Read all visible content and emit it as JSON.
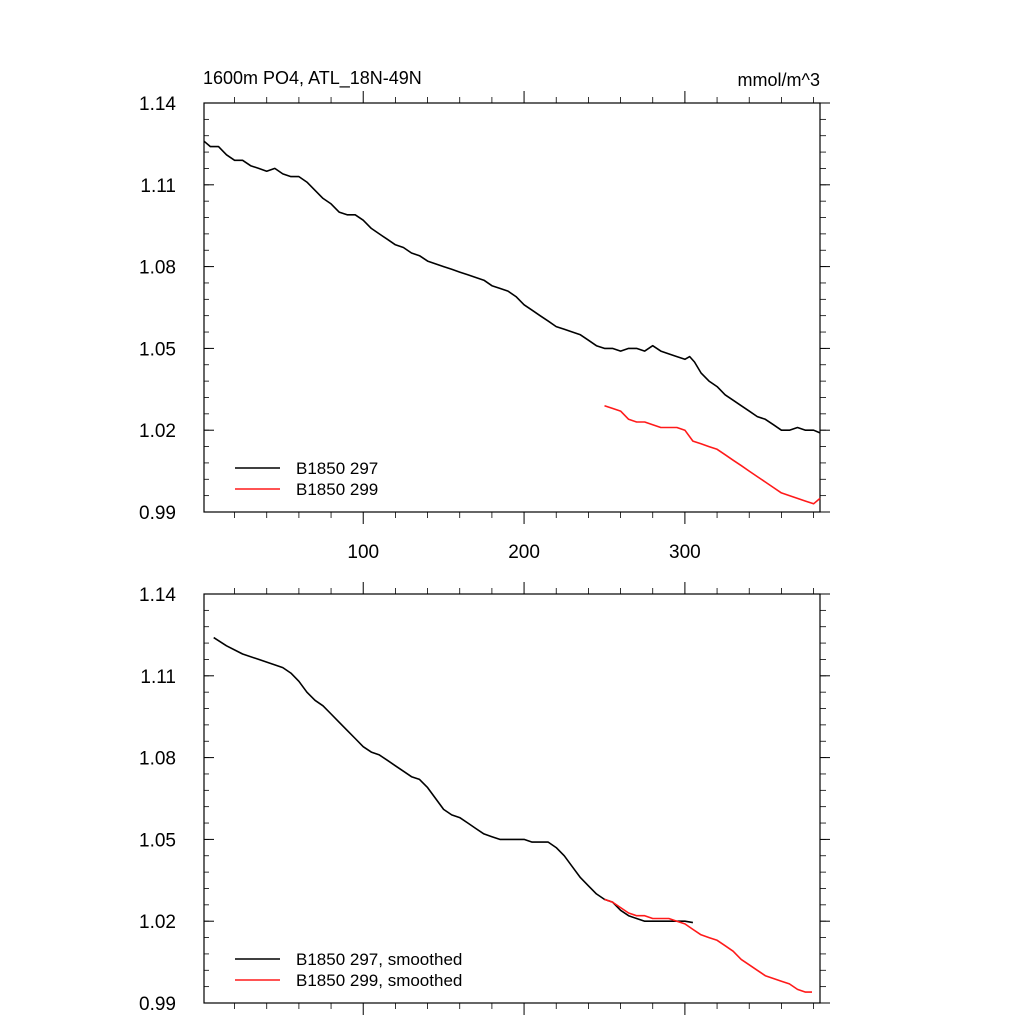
{
  "title_left": "1600m PO4, ATL_18N-49N",
  "title_right": "mmol/m^3",
  "colors": {
    "series1": "#000000",
    "series2": "#ff1a1a",
    "axis": "#000000"
  },
  "chart_data": [
    {
      "type": "line",
      "xlim": [
        1,
        384
      ],
      "ylim": [
        0.99,
        1.14
      ],
      "yticks": [
        0.99,
        1.02,
        1.05,
        1.08,
        1.11,
        1.14
      ],
      "ytick_labels": [
        "0.99",
        "1.02",
        "1.05",
        "1.08",
        "1.11",
        "1.14"
      ],
      "xticks": [
        100,
        200,
        300
      ],
      "xtick_labels": [
        "100",
        "200",
        "300"
      ],
      "legend_position": "bottom-left",
      "series": [
        {
          "name": "B1850 297",
          "color": "#000000",
          "points": [
            [
              1,
              1.126
            ],
            [
              5,
              1.124
            ],
            [
              10,
              1.124
            ],
            [
              15,
              1.121
            ],
            [
              20,
              1.119
            ],
            [
              25,
              1.119
            ],
            [
              30,
              1.117
            ],
            [
              35,
              1.116
            ],
            [
              40,
              1.115
            ],
            [
              45,
              1.116
            ],
            [
              50,
              1.114
            ],
            [
              55,
              1.113
            ],
            [
              60,
              1.113
            ],
            [
              65,
              1.111
            ],
            [
              70,
              1.108
            ],
            [
              75,
              1.105
            ],
            [
              80,
              1.103
            ],
            [
              85,
              1.1
            ],
            [
              90,
              1.099
            ],
            [
              95,
              1.099
            ],
            [
              100,
              1.097
            ],
            [
              105,
              1.094
            ],
            [
              110,
              1.092
            ],
            [
              115,
              1.09
            ],
            [
              120,
              1.088
            ],
            [
              125,
              1.087
            ],
            [
              130,
              1.085
            ],
            [
              135,
              1.084
            ],
            [
              140,
              1.082
            ],
            [
              145,
              1.081
            ],
            [
              150,
              1.08
            ],
            [
              155,
              1.079
            ],
            [
              160,
              1.078
            ],
            [
              165,
              1.077
            ],
            [
              170,
              1.076
            ],
            [
              175,
              1.075
            ],
            [
              180,
              1.073
            ],
            [
              185,
              1.072
            ],
            [
              190,
              1.071
            ],
            [
              195,
              1.069
            ],
            [
              200,
              1.066
            ],
            [
              205,
              1.064
            ],
            [
              210,
              1.062
            ],
            [
              215,
              1.06
            ],
            [
              220,
              1.058
            ],
            [
              225,
              1.057
            ],
            [
              230,
              1.056
            ],
            [
              235,
              1.055
            ],
            [
              240,
              1.053
            ],
            [
              245,
              1.051
            ],
            [
              250,
              1.05
            ],
            [
              255,
              1.05
            ],
            [
              260,
              1.049
            ],
            [
              265,
              1.05
            ],
            [
              270,
              1.05
            ],
            [
              275,
              1.049
            ],
            [
              280,
              1.051
            ],
            [
              285,
              1.049
            ],
            [
              290,
              1.048
            ],
            [
              295,
              1.047
            ],
            [
              300,
              1.046
            ],
            [
              303,
              1.047
            ],
            [
              306,
              1.045
            ],
            [
              310,
              1.041
            ],
            [
              315,
              1.038
            ],
            [
              320,
              1.036
            ],
            [
              325,
              1.033
            ],
            [
              330,
              1.031
            ],
            [
              335,
              1.029
            ],
            [
              340,
              1.027
            ],
            [
              345,
              1.025
            ],
            [
              350,
              1.024
            ],
            [
              355,
              1.022
            ],
            [
              360,
              1.02
            ],
            [
              365,
              1.02
            ],
            [
              370,
              1.021
            ],
            [
              375,
              1.02
            ],
            [
              380,
              1.02
            ],
            [
              384,
              1.019
            ]
          ]
        },
        {
          "name": "B1850 299",
          "color": "#ff1a1a",
          "points": [
            [
              250,
              1.029
            ],
            [
              255,
              1.028
            ],
            [
              260,
              1.027
            ],
            [
              265,
              1.024
            ],
            [
              270,
              1.023
            ],
            [
              275,
              1.023
            ],
            [
              280,
              1.022
            ],
            [
              285,
              1.021
            ],
            [
              290,
              1.021
            ],
            [
              295,
              1.021
            ],
            [
              300,
              1.02
            ],
            [
              305,
              1.016
            ],
            [
              310,
              1.015
            ],
            [
              315,
              1.014
            ],
            [
              320,
              1.013
            ],
            [
              325,
              1.011
            ],
            [
              330,
              1.009
            ],
            [
              335,
              1.007
            ],
            [
              340,
              1.005
            ],
            [
              345,
              1.003
            ],
            [
              350,
              1.001
            ],
            [
              355,
              0.999
            ],
            [
              360,
              0.997
            ],
            [
              365,
              0.996
            ],
            [
              370,
              0.995
            ],
            [
              375,
              0.994
            ],
            [
              380,
              0.993
            ],
            [
              384,
              0.995
            ]
          ]
        }
      ]
    },
    {
      "type": "line",
      "xlim": [
        1,
        384
      ],
      "ylim": [
        0.99,
        1.14
      ],
      "yticks": [
        0.99,
        1.02,
        1.05,
        1.08,
        1.11,
        1.14
      ],
      "ytick_labels": [
        "0.99",
        "1.02",
        "1.05",
        "1.08",
        "1.11",
        "1.14"
      ],
      "xticks": [
        100,
        200,
        300
      ],
      "xtick_labels": [],
      "legend_position": "bottom-left",
      "series": [
        {
          "name": "B1850 297, smoothed",
          "color": "#000000",
          "points": [
            [
              7,
              1.124
            ],
            [
              15,
              1.121
            ],
            [
              25,
              1.118
            ],
            [
              35,
              1.116
            ],
            [
              45,
              1.114
            ],
            [
              50,
              1.113
            ],
            [
              55,
              1.111
            ],
            [
              60,
              1.108
            ],
            [
              65,
              1.104
            ],
            [
              70,
              1.101
            ],
            [
              75,
              1.099
            ],
            [
              80,
              1.096
            ],
            [
              85,
              1.093
            ],
            [
              90,
              1.09
            ],
            [
              95,
              1.087
            ],
            [
              100,
              1.084
            ],
            [
              105,
              1.082
            ],
            [
              110,
              1.081
            ],
            [
              115,
              1.079
            ],
            [
              120,
              1.077
            ],
            [
              125,
              1.075
            ],
            [
              130,
              1.073
            ],
            [
              135,
              1.072
            ],
            [
              140,
              1.069
            ],
            [
              145,
              1.065
            ],
            [
              150,
              1.061
            ],
            [
              155,
              1.059
            ],
            [
              160,
              1.058
            ],
            [
              165,
              1.056
            ],
            [
              170,
              1.054
            ],
            [
              175,
              1.052
            ],
            [
              180,
              1.051
            ],
            [
              185,
              1.05
            ],
            [
              190,
              1.05
            ],
            [
              195,
              1.05
            ],
            [
              200,
              1.05
            ],
            [
              205,
              1.049
            ],
            [
              210,
              1.049
            ],
            [
              215,
              1.049
            ],
            [
              220,
              1.047
            ],
            [
              225,
              1.044
            ],
            [
              230,
              1.04
            ],
            [
              235,
              1.036
            ],
            [
              240,
              1.033
            ],
            [
              245,
              1.03
            ],
            [
              250,
              1.028
            ],
            [
              255,
              1.027
            ],
            [
              260,
              1.024
            ],
            [
              265,
              1.022
            ],
            [
              270,
              1.021
            ],
            [
              275,
              1.02
            ],
            [
              280,
              1.02
            ],
            [
              285,
              1.02
            ],
            [
              290,
              1.02
            ],
            [
              295,
              1.02
            ],
            [
              300,
              1.02
            ],
            [
              305,
              1.0195
            ]
          ]
        },
        {
          "name": "B1850 299, smoothed",
          "color": "#ff1a1a",
          "points": [
            [
              250,
              1.028
            ],
            [
              255,
              1.027
            ],
            [
              260,
              1.025
            ],
            [
              265,
              1.023
            ],
            [
              270,
              1.022
            ],
            [
              275,
              1.022
            ],
            [
              280,
              1.021
            ],
            [
              285,
              1.021
            ],
            [
              290,
              1.021
            ],
            [
              295,
              1.02
            ],
            [
              300,
              1.019
            ],
            [
              305,
              1.017
            ],
            [
              310,
              1.015
            ],
            [
              315,
              1.014
            ],
            [
              320,
              1.013
            ],
            [
              325,
              1.011
            ],
            [
              330,
              1.009
            ],
            [
              335,
              1.006
            ],
            [
              340,
              1.004
            ],
            [
              345,
              1.002
            ],
            [
              350,
              1.0
            ],
            [
              355,
              0.999
            ],
            [
              360,
              0.998
            ],
            [
              365,
              0.997
            ],
            [
              370,
              0.995
            ],
            [
              375,
              0.994
            ],
            [
              379,
              0.994
            ]
          ]
        }
      ]
    }
  ]
}
